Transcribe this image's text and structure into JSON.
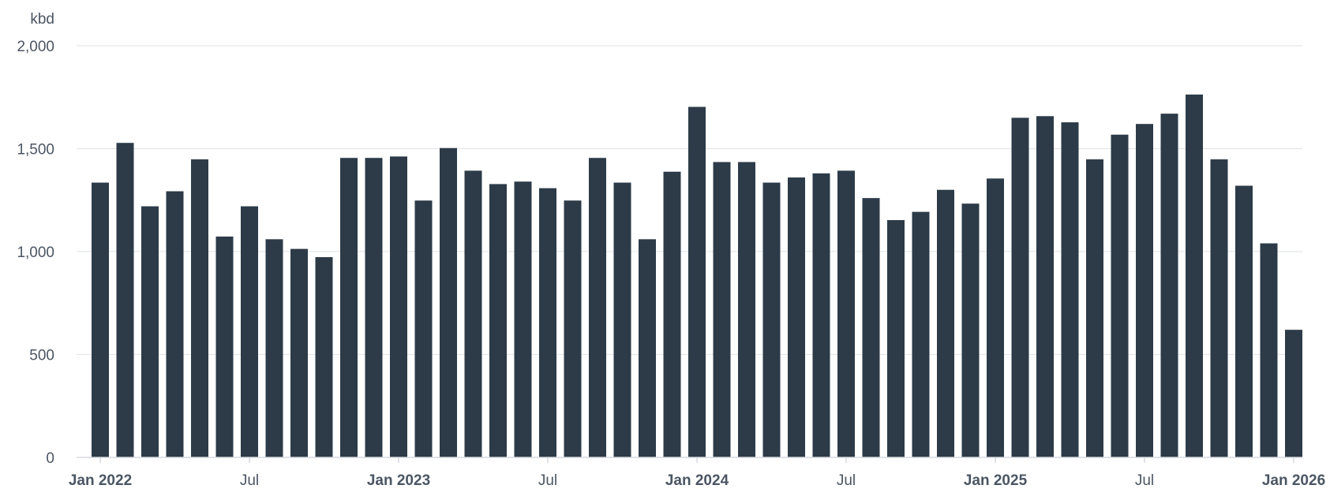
{
  "chart_data": {
    "type": "bar",
    "title": "",
    "xlabel": "",
    "ylabel": "kbd",
    "ylim": [
      0,
      2000
    ],
    "y_ticks": [
      {
        "value": 0,
        "label": "0"
      },
      {
        "value": 500,
        "label": "500"
      },
      {
        "value": 1000,
        "label": "1,000"
      },
      {
        "value": 1500,
        "label": "1,500"
      },
      {
        "value": 2000,
        "label": "2,000"
      }
    ],
    "x_ticks": [
      {
        "index": 0,
        "label": "Jan 2022",
        "major": true
      },
      {
        "index": 6,
        "label": "Jul",
        "major": false
      },
      {
        "index": 12,
        "label": "Jan 2023",
        "major": true
      },
      {
        "index": 18,
        "label": "Jul",
        "major": false
      },
      {
        "index": 24,
        "label": "Jan 2024",
        "major": true
      },
      {
        "index": 30,
        "label": "Jul",
        "major": false
      },
      {
        "index": 36,
        "label": "Jan 2025",
        "major": true
      },
      {
        "index": 42,
        "label": "Jul",
        "major": false
      },
      {
        "index": 48,
        "label": "Jan 2026",
        "major": true
      }
    ],
    "grid": true,
    "legend": "none",
    "bar_color": "#2d3b48",
    "categories": [
      "2021-12",
      "2022-01",
      "2022-02",
      "2022-03",
      "2022-04",
      "2022-05",
      "2022-06",
      "2022-07",
      "2022-08",
      "2022-09",
      "2022-10",
      "2022-11",
      "2022-12",
      "2023-01",
      "2023-02",
      "2023-03",
      "2023-04",
      "2023-05",
      "2023-06",
      "2023-07",
      "2023-08",
      "2023-09",
      "2023-10",
      "2023-11",
      "2023-12",
      "2024-01",
      "2024-02",
      "2024-03",
      "2024-04",
      "2024-05",
      "2024-06",
      "2024-07",
      "2024-08",
      "2024-09",
      "2024-10",
      "2024-11",
      "2024-12",
      "2025-01",
      "2025-02",
      "2025-03",
      "2025-04",
      "2025-05",
      "2025-06",
      "2025-07",
      "2025-08",
      "2025-09",
      "2025-10",
      "2025-11",
      "2025-12"
    ],
    "values": [
      1335,
      1528,
      1220,
      1293,
      1448,
      1073,
      1220,
      1060,
      1013,
      973,
      1455,
      1455,
      1462,
      1248,
      1503,
      1393,
      1328,
      1340,
      1308,
      1248,
      1455,
      1335,
      1060,
      1388,
      1703,
      1435,
      1435,
      1335,
      1360,
      1380,
      1393,
      1260,
      1153,
      1193,
      1300,
      1233,
      1355,
      1650,
      1658,
      1628,
      1448,
      1568,
      1620,
      1670,
      1763,
      1448,
      1320,
      1040,
      620
    ]
  }
}
